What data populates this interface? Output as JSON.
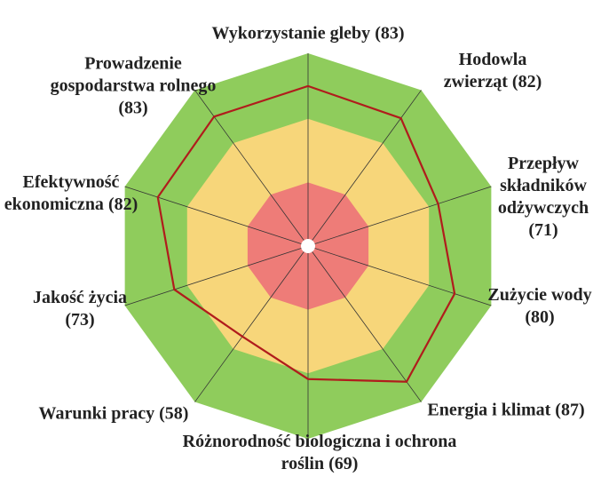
{
  "chart_data": {
    "type": "radar",
    "categories": [
      "Wykorzystanie gleby",
      "Hodowla zwierząt",
      "Przepływ składników odżywczych",
      "Zużycie wody",
      "Energia i klimat",
      "Różnorodność biologiczna i ochrona roślin",
      "Warunki pracy",
      "Jakość życia",
      "Efektywność ekonomiczna",
      "Prowadzenie gospodarstwa rolnego"
    ],
    "values": [
      83,
      82,
      71,
      80,
      87,
      69,
      58,
      73,
      82,
      83
    ],
    "value_labels": [
      "(83)",
      "(82)",
      "(71)",
      "(80)",
      "(87)",
      "(69)",
      "(58)",
      "(73)",
      "(82)",
      "(83)"
    ],
    "color": "#b01c1c",
    "rlim": [
      0,
      100
    ],
    "zones": [
      {
        "from": 66,
        "to": 100,
        "color": "#8fcc5c"
      },
      {
        "from": 33,
        "to": 66,
        "color": "#f7d67a"
      },
      {
        "from": 0,
        "to": 33,
        "color": "#ee7c78"
      }
    ]
  }
}
